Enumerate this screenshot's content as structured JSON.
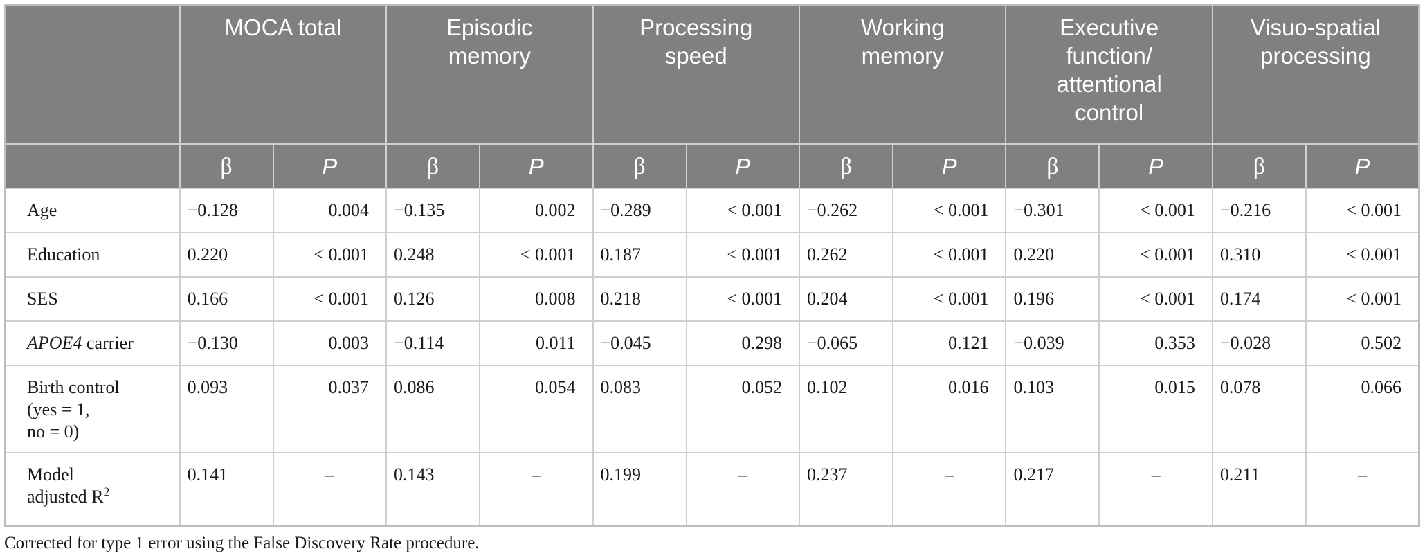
{
  "table": {
    "groups": [
      "MOCA total",
      "Episodic memory",
      "Processing speed",
      "Working memory",
      "Executive function/ attentional control",
      "Visuo-spatial processing"
    ],
    "beta_label": "β",
    "p_label": "P",
    "rows": [
      {
        "label": "Age",
        "italic": false,
        "cells": [
          "−0.128",
          "0.004",
          "−0.135",
          "0.002",
          "−0.289",
          "< 0.001",
          "−0.262",
          "< 0.001",
          "−0.301",
          "< 0.001",
          "−0.216",
          "< 0.001"
        ]
      },
      {
        "label": "Education",
        "italic": false,
        "cells": [
          "0.220",
          "< 0.001",
          "0.248",
          "< 0.001",
          "0.187",
          "< 0.001",
          "0.262",
          "< 0.001",
          "0.220",
          "< 0.001",
          "0.310",
          "< 0.001"
        ]
      },
      {
        "label": "SES",
        "italic": false,
        "cells": [
          "0.166",
          "< 0.001",
          "0.126",
          "0.008",
          "0.218",
          "< 0.001",
          "0.204",
          "< 0.001",
          "0.196",
          "< 0.001",
          "0.174",
          "< 0.001"
        ]
      },
      {
        "label_italic": "APOE4",
        "label_rest": " carrier",
        "cells": [
          "−0.130",
          "0.003",
          "−0.114",
          "0.011",
          "−0.045",
          "0.298",
          "−0.065",
          "0.121",
          "−0.039",
          "0.353",
          "−0.028",
          "0.502"
        ]
      },
      {
        "label_lines": [
          "Birth control",
          "(yes = 1,",
          "no = 0)"
        ],
        "cells": [
          "0.093",
          "0.037",
          "0.086",
          "0.054",
          "0.083",
          "0.052",
          "0.102",
          "0.016",
          "0.103",
          "0.015",
          "0.078",
          "0.066"
        ]
      },
      {
        "label_lines": [
          "Model",
          "adjusted R"
        ],
        "label_sup": "2",
        "cells": [
          "0.141",
          "–",
          "0.143",
          "–",
          "0.199",
          "–",
          "0.237",
          "–",
          "0.217",
          "–",
          "0.211",
          "–"
        ]
      }
    ]
  },
  "footnote": "Corrected for type 1 error using the False Discovery Rate procedure."
}
